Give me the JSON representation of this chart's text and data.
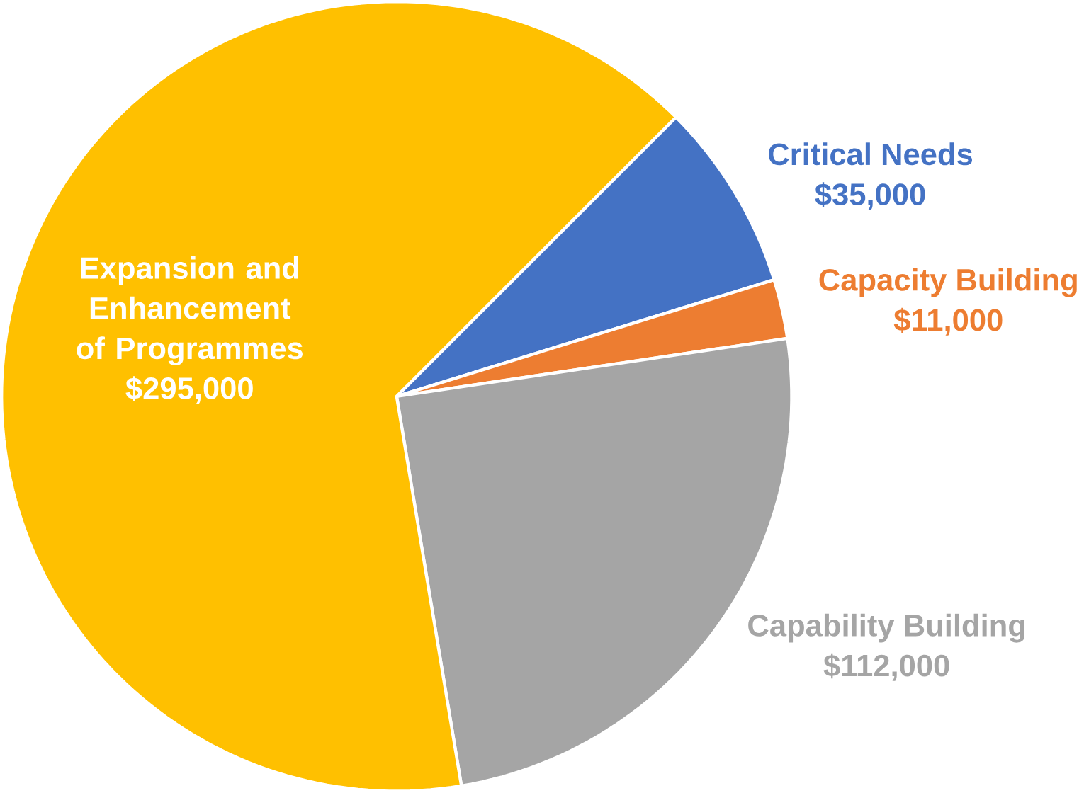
{
  "chart_data": {
    "type": "pie",
    "categories": [
      "Critical Needs",
      "Capacity Building",
      "Capability Building",
      "Expansion and Enhancement of Programmes"
    ],
    "values": [
      35000,
      11000,
      112000,
      295000
    ],
    "value_labels": [
      "$35,000",
      "$11,000",
      "$112,000",
      "$295,000"
    ],
    "colors": [
      "#4472c4",
      "#ed7d31",
      "#a5a5a5",
      "#ffc000"
    ]
  }
}
